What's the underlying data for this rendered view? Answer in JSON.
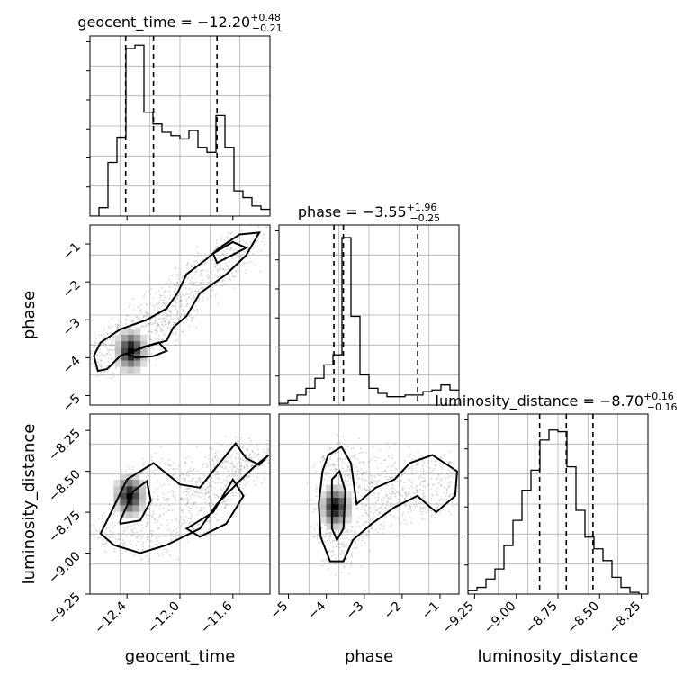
{
  "chart_data": [
    {
      "type": "histogram",
      "panel": "hist-geocent_time",
      "title": {
        "prefix": "geocent_time = −12.20",
        "sup": "+0.48",
        "sub": "−0.21"
      },
      "xlim": [
        -12.68,
        -11.32
      ],
      "quantiles": [
        -12.41,
        -12.2,
        -11.72
      ],
      "bins": {
        "start": -12.68,
        "width": 0.068,
        "counts": [
          0,
          0.05,
          0.32,
          0.47,
          1.0,
          1.02,
          0.62,
          0.55,
          0.5,
          0.48,
          0.46,
          0.51,
          0.41,
          0.38,
          0.6,
          0.41,
          0.15,
          0.11,
          0.06,
          0.04
        ]
      },
      "xticks": [
        -12.4,
        -12.0,
        -11.6
      ]
    },
    {
      "type": "scatter-density",
      "panel": "2d-geocent-phase",
      "xlim": [
        -12.68,
        -11.32
      ],
      "ylim": [
        -5.25,
        -0.5
      ],
      "ylabel": "phase",
      "yticks": [
        {
          "v": -1,
          "t": "−1"
        },
        {
          "v": -2,
          "t": "−2"
        },
        {
          "v": -3,
          "t": "−3"
        },
        {
          "v": -4,
          "t": "−4"
        },
        {
          "v": -5,
          "t": "−5"
        }
      ],
      "peak": [
        -12.37,
        -3.82
      ],
      "contours": [
        [
          [
            -12.55,
            -4.3
          ],
          [
            -12.45,
            -3.95
          ],
          [
            -12.25,
            -3.7
          ],
          [
            -12.1,
            -3.55
          ],
          [
            -12.05,
            -3.2
          ],
          [
            -11.95,
            -2.9
          ],
          [
            -11.85,
            -2.3
          ],
          [
            -11.65,
            -1.8
          ],
          [
            -11.5,
            -1.3
          ],
          [
            -11.4,
            -0.7
          ],
          [
            -11.55,
            -0.75
          ],
          [
            -11.7,
            -1.1
          ],
          [
            -11.8,
            -1.4
          ],
          [
            -11.95,
            -1.8
          ],
          [
            -12.02,
            -2.3
          ],
          [
            -12.1,
            -2.7
          ],
          [
            -12.25,
            -3.0
          ],
          [
            -12.45,
            -3.25
          ],
          [
            -12.6,
            -3.6
          ],
          [
            -12.65,
            -3.95
          ],
          [
            -12.62,
            -4.35
          ],
          [
            -12.55,
            -4.3
          ]
        ],
        [
          [
            -12.4,
            -3.9
          ],
          [
            -12.28,
            -3.72
          ],
          [
            -12.16,
            -3.6
          ],
          [
            -12.1,
            -3.82
          ],
          [
            -12.2,
            -3.96
          ],
          [
            -12.33,
            -4.0
          ],
          [
            -12.4,
            -3.9
          ]
        ],
        [
          [
            -11.72,
            -1.5
          ],
          [
            -11.5,
            -1.1
          ],
          [
            -11.6,
            -0.95
          ],
          [
            -11.75,
            -1.25
          ],
          [
            -11.72,
            -1.5
          ]
        ]
      ]
    },
    {
      "type": "histogram",
      "panel": "hist-phase",
      "title": {
        "prefix": "phase = −3.55",
        "sup": "+1.96",
        "sub": "−0.25"
      },
      "xlim": [
        -5.25,
        -0.5
      ],
      "quantiles": [
        -3.8,
        -3.55,
        -1.59
      ],
      "bins": {
        "start": -5.25,
        "width": 0.2375,
        "counts": [
          0.01,
          0.03,
          0.06,
          0.1,
          0.16,
          0.24,
          0.3,
          1.0,
          0.53,
          0.18,
          0.1,
          0.07,
          0.05,
          0.05,
          0.06,
          0.06,
          0.08,
          0.09,
          0.12,
          0.09
        ]
      },
      "xticks": []
    },
    {
      "type": "scatter-density",
      "panel": "2d-geocent-luminosity",
      "xlim": [
        -12.68,
        -11.32
      ],
      "ylim": [
        -9.25,
        -8.15
      ],
      "xlabel": "geocent_time",
      "ylabel": "luminosity_distance",
      "xticks": [
        {
          "v": -12.4,
          "t": "−12.4"
        },
        {
          "v": -12.0,
          "t": "−12.0"
        },
        {
          "v": -11.6,
          "t": "−11.6"
        }
      ],
      "yticks": [
        {
          "v": -8.25,
          "t": "−8.25"
        },
        {
          "v": -8.5,
          "t": "−8.50"
        },
        {
          "v": -8.75,
          "t": "−8.75"
        },
        {
          "v": -9.0,
          "t": "−9.00"
        },
        {
          "v": -9.25,
          "t": "−9.25"
        }
      ],
      "peak": [
        -12.38,
        -8.65
      ],
      "contours": [
        [
          [
            -12.55,
            -8.8
          ],
          [
            -12.4,
            -8.55
          ],
          [
            -12.2,
            -8.45
          ],
          [
            -12.0,
            -8.58
          ],
          [
            -11.85,
            -8.6
          ],
          [
            -11.7,
            -8.45
          ],
          [
            -11.58,
            -8.33
          ],
          [
            -11.5,
            -8.42
          ],
          [
            -11.4,
            -8.46
          ],
          [
            -11.33,
            -8.4
          ],
          [
            -11.45,
            -8.48
          ],
          [
            -11.55,
            -8.56
          ],
          [
            -11.72,
            -8.7
          ],
          [
            -11.85,
            -8.85
          ],
          [
            -12.1,
            -8.95
          ],
          [
            -12.3,
            -9.0
          ],
          [
            -12.5,
            -8.95
          ],
          [
            -12.6,
            -8.88
          ],
          [
            -12.55,
            -8.8
          ]
        ],
        [
          [
            -12.45,
            -8.8
          ],
          [
            -12.35,
            -8.62
          ],
          [
            -12.25,
            -8.56
          ],
          [
            -12.22,
            -8.68
          ],
          [
            -12.3,
            -8.8
          ],
          [
            -12.45,
            -8.82
          ],
          [
            -12.45,
            -8.8
          ]
        ],
        [
          [
            -11.95,
            -8.85
          ],
          [
            -11.75,
            -8.75
          ],
          [
            -11.6,
            -8.55
          ],
          [
            -11.52,
            -8.65
          ],
          [
            -11.65,
            -8.82
          ],
          [
            -11.85,
            -8.9
          ],
          [
            -11.95,
            -8.85
          ]
        ]
      ]
    },
    {
      "type": "scatter-density",
      "panel": "2d-phase-luminosity",
      "xlim": [
        -5.25,
        -0.5
      ],
      "ylim": [
        -9.25,
        -8.15
      ],
      "xlabel": "phase",
      "xticks": [
        {
          "v": -5,
          "t": "−5"
        },
        {
          "v": -4,
          "t": "−4"
        },
        {
          "v": -3,
          "t": "−3"
        },
        {
          "v": -2,
          "t": "−2"
        },
        {
          "v": -1,
          "t": "−1"
        }
      ],
      "peak": [
        -3.75,
        -8.72
      ],
      "contours": [
        [
          [
            -3.95,
            -8.4
          ],
          [
            -3.6,
            -8.35
          ],
          [
            -3.35,
            -8.45
          ],
          [
            -3.2,
            -8.7
          ],
          [
            -2.7,
            -8.6
          ],
          [
            -2.2,
            -8.55
          ],
          [
            -1.8,
            -8.45
          ],
          [
            -1.2,
            -8.4
          ],
          [
            -0.55,
            -8.5
          ],
          [
            -0.6,
            -8.65
          ],
          [
            -1.1,
            -8.75
          ],
          [
            -1.6,
            -8.65
          ],
          [
            -2.2,
            -8.72
          ],
          [
            -2.8,
            -8.82
          ],
          [
            -3.3,
            -8.92
          ],
          [
            -3.55,
            -9.05
          ],
          [
            -3.9,
            -9.05
          ],
          [
            -4.15,
            -8.9
          ],
          [
            -4.2,
            -8.7
          ],
          [
            -4.1,
            -8.5
          ],
          [
            -3.95,
            -8.4
          ]
        ],
        [
          [
            -3.85,
            -8.55
          ],
          [
            -3.65,
            -8.5
          ],
          [
            -3.5,
            -8.62
          ],
          [
            -3.55,
            -8.85
          ],
          [
            -3.72,
            -8.92
          ],
          [
            -3.85,
            -8.85
          ],
          [
            -3.85,
            -8.55
          ]
        ]
      ]
    },
    {
      "type": "histogram",
      "panel": "hist-luminosity",
      "title": {
        "prefix": "luminosity_distance = −8.70",
        "sup": "+0.16",
        "sub": "−0.16"
      },
      "xlim": [
        -9.29,
        -8.21
      ],
      "quantiles": [
        -8.86,
        -8.7,
        -8.54
      ],
      "bins": {
        "start": -9.29,
        "width": 0.054,
        "counts": [
          0.02,
          0.04,
          0.09,
          0.15,
          0.29,
          0.44,
          0.62,
          0.74,
          0.92,
          0.98,
          0.97,
          0.76,
          0.5,
          0.34,
          0.27,
          0.2,
          0.1,
          0.04,
          0.01,
          0.0
        ]
      },
      "xlabel": "luminosity_distance",
      "xticks": [
        {
          "v": -9.25,
          "t": "−9.25"
        },
        {
          "v": -9.0,
          "t": "−9.00"
        },
        {
          "v": -8.75,
          "t": "−8.75"
        },
        {
          "v": -8.5,
          "t": "−8.50"
        },
        {
          "v": -8.25,
          "t": "−8.25"
        }
      ]
    }
  ]
}
